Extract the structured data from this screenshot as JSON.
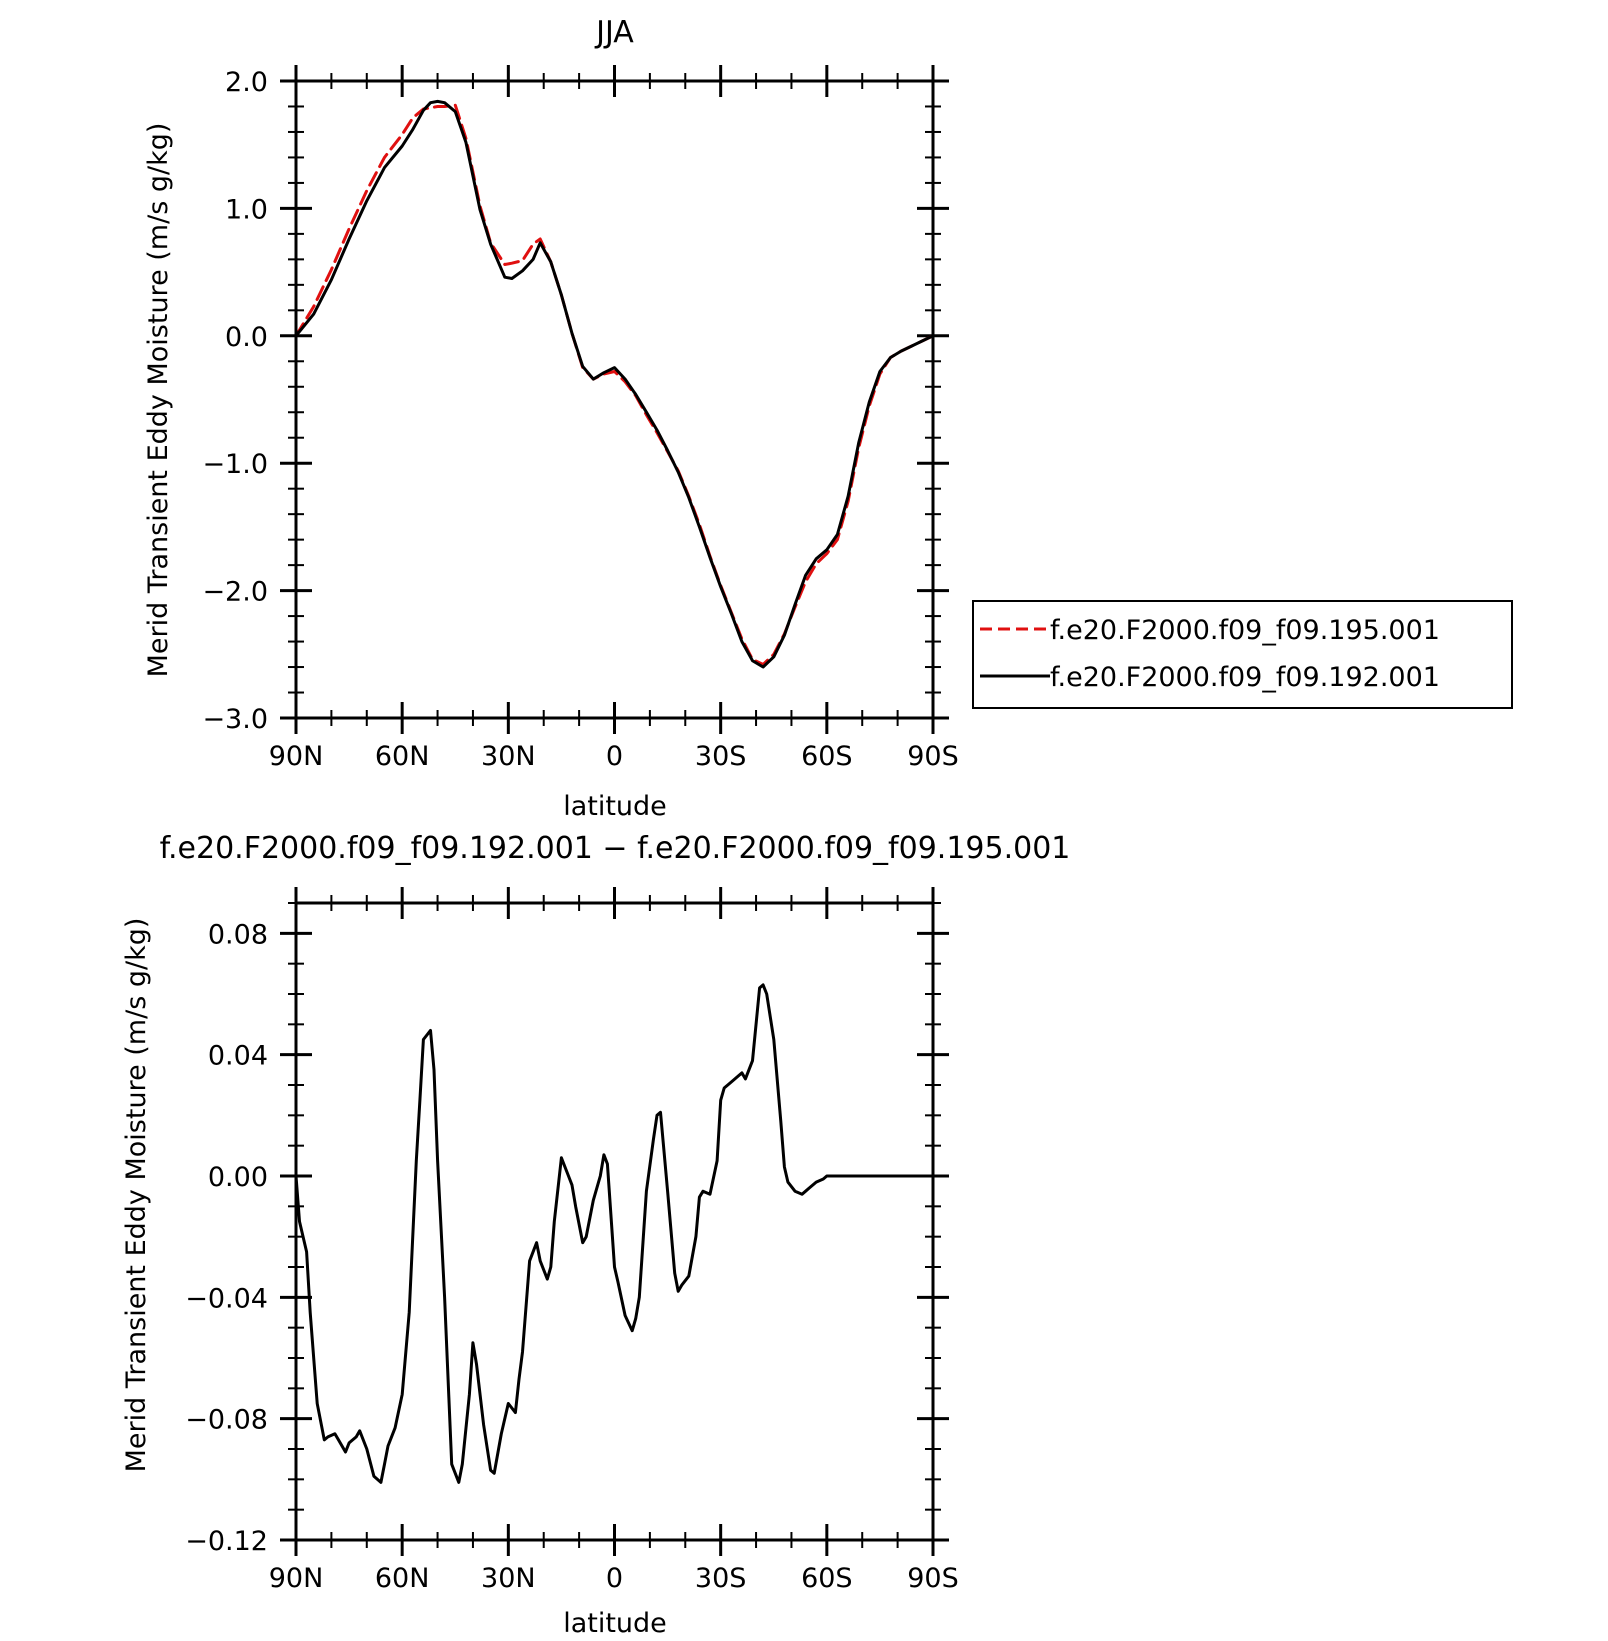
{
  "chart_data": [
    {
      "type": "line",
      "title": "JJA",
      "xlabel": "latitude",
      "ylabel": "Merid Transient Eddy Moisture (m/s g/kg)",
      "xlim": [
        90,
        -90
      ],
      "ylim": [
        -3.0,
        2.0
      ],
      "x_tick_values": [
        90,
        60,
        30,
        0,
        -30,
        -60,
        -90
      ],
      "x_tick_labels": [
        "90N",
        "60N",
        "30N",
        "0",
        "30S",
        "60S",
        "90S"
      ],
      "y_tick_values": [
        2.0,
        1.0,
        0.0,
        -1.0,
        -2.0,
        -3.0
      ],
      "y_tick_labels": [
        "2.0",
        "1.0",
        "0.0",
        "−1.0",
        "−2.0",
        "−3.0"
      ],
      "legend_position": "right",
      "series": [
        {
          "name": "f.e20.F2000.f09_f09.195.001",
          "color": "#e01010",
          "style": "dashed",
          "x": [
            90,
            85,
            80,
            75,
            70,
            65,
            60,
            57,
            54,
            52,
            50,
            48,
            45,
            42,
            38,
            35,
            31,
            29,
            26,
            23,
            21,
            18,
            15,
            12,
            9,
            6,
            3,
            0,
            -3,
            -6,
            -9,
            -12,
            -15,
            -18,
            -21,
            -24,
            -27,
            -30,
            -33,
            -36,
            -39,
            -42,
            -45,
            -48,
            -51,
            -54,
            -57,
            -60,
            -63,
            -66,
            -69,
            -72,
            -75,
            -78,
            -81,
            -84,
            -87,
            -90
          ],
          "y": [
            0.0,
            0.23,
            0.52,
            0.84,
            1.14,
            1.4,
            1.58,
            1.71,
            1.78,
            1.79,
            1.8,
            1.8,
            1.81,
            1.55,
            1.02,
            0.73,
            0.56,
            0.57,
            0.59,
            0.72,
            0.76,
            0.58,
            0.32,
            0.02,
            -0.25,
            -0.34,
            -0.3,
            -0.28,
            -0.36,
            -0.47,
            -0.62,
            -0.76,
            -0.91,
            -1.06,
            -1.26,
            -1.48,
            -1.73,
            -1.96,
            -2.17,
            -2.38,
            -2.54,
            -2.58,
            -2.5,
            -2.34,
            -2.13,
            -1.93,
            -1.79,
            -1.71,
            -1.6,
            -1.3,
            -0.88,
            -0.55,
            -0.3,
            -0.17,
            -0.12,
            -0.08,
            -0.04,
            0.0
          ]
        },
        {
          "name": "f.e20.F2000.f09_f09.192.001",
          "color": "#000000",
          "style": "solid",
          "x": [
            90,
            85,
            80,
            75,
            70,
            65,
            60,
            57,
            54,
            52,
            50,
            48,
            45,
            42,
            38,
            35,
            31,
            29,
            26,
            23,
            21,
            18,
            15,
            12,
            9,
            6,
            3,
            0,
            -3,
            -6,
            -9,
            -12,
            -15,
            -18,
            -21,
            -24,
            -27,
            -30,
            -33,
            -36,
            -39,
            -42,
            -45,
            -48,
            -51,
            -54,
            -57,
            -60,
            -63,
            -66,
            -69,
            -72,
            -75,
            -78,
            -81,
            -84,
            -87,
            -90
          ],
          "y": [
            0.0,
            0.17,
            0.44,
            0.76,
            1.06,
            1.32,
            1.49,
            1.62,
            1.77,
            1.83,
            1.84,
            1.83,
            1.76,
            1.52,
            0.99,
            0.72,
            0.46,
            0.45,
            0.51,
            0.6,
            0.73,
            0.58,
            0.32,
            0.02,
            -0.24,
            -0.34,
            -0.29,
            -0.25,
            -0.34,
            -0.46,
            -0.6,
            -0.74,
            -0.9,
            -1.07,
            -1.27,
            -1.5,
            -1.74,
            -1.97,
            -2.18,
            -2.4,
            -2.55,
            -2.6,
            -2.52,
            -2.35,
            -2.11,
            -1.88,
            -1.75,
            -1.68,
            -1.56,
            -1.26,
            -0.84,
            -0.52,
            -0.28,
            -0.17,
            -0.12,
            -0.08,
            -0.04,
            0.0
          ]
        }
      ]
    },
    {
      "type": "line",
      "title": "f.e20.F2000.f09_f09.192.001 − f.e20.F2000.f09_f09.195.001",
      "xlabel": "latitude",
      "ylabel": "Merid Transient Eddy Moisture (m/s g/kg)",
      "xlim": [
        90,
        -90
      ],
      "ylim": [
        -0.12,
        0.09
      ],
      "x_tick_values": [
        90,
        60,
        30,
        0,
        -30,
        -60,
        -90
      ],
      "x_tick_labels": [
        "90N",
        "60N",
        "30N",
        "0",
        "30S",
        "60S",
        "90S"
      ],
      "y_tick_values": [
        0.08,
        0.04,
        0.0,
        -0.04,
        -0.08,
        -0.12
      ],
      "y_tick_labels": [
        "0.08",
        "0.04",
        "0.00",
        "−0.04",
        "−0.08",
        "−0.12"
      ],
      "series": [
        {
          "color": "#000000",
          "style": "solid",
          "x": [
            90,
            89,
            87,
            86,
            84,
            82,
            81,
            79,
            78,
            76,
            75,
            73,
            72,
            70,
            68,
            66,
            65,
            64,
            62,
            60,
            58,
            56,
            55,
            54,
            52,
            51,
            50,
            48,
            46,
            44,
            43,
            41,
            40,
            39,
            37,
            35,
            34,
            32,
            30,
            28,
            27,
            26,
            24,
            22,
            21,
            19,
            18,
            17,
            15,
            13,
            12,
            11,
            9,
            8,
            6,
            4,
            3,
            2,
            0,
            -1,
            -3,
            -5,
            -6,
            -7,
            -9,
            -11,
            -12,
            -13,
            -15,
            -17,
            -18,
            -19,
            -21,
            -23,
            -24,
            -25,
            -27,
            -29,
            -30,
            -31,
            -33,
            -35,
            -36,
            -37,
            -39,
            -41,
            -42,
            -43,
            -45,
            -47,
            -48,
            -49,
            -51,
            -53,
            -54,
            -55,
            -57,
            -59,
            -60,
            -61,
            -63,
            -65,
            -66,
            -67,
            -69,
            -71,
            -72,
            -73,
            -75,
            -77,
            -78,
            -79,
            -81,
            -83,
            -84,
            -85,
            -87,
            -89,
            -90
          ],
          "y": [
            0.0,
            -0.015,
            -0.025,
            -0.045,
            -0.075,
            -0.087,
            -0.086,
            -0.085,
            -0.087,
            -0.091,
            -0.088,
            -0.086,
            -0.084,
            -0.09,
            -0.099,
            -0.101,
            -0.095,
            -0.089,
            -0.083,
            -0.072,
            -0.045,
            0.005,
            0.025,
            0.045,
            0.048,
            0.035,
            0.005,
            -0.04,
            -0.095,
            -0.101,
            -0.095,
            -0.072,
            -0.055,
            -0.062,
            -0.082,
            -0.097,
            -0.098,
            -0.085,
            -0.075,
            -0.078,
            -0.067,
            -0.058,
            -0.028,
            -0.022,
            -0.028,
            -0.034,
            -0.03,
            -0.015,
            0.006,
            0.0,
            -0.003,
            -0.01,
            -0.022,
            -0.02,
            -0.008,
            0.0,
            0.007,
            0.004,
            -0.03,
            -0.035,
            -0.046,
            -0.051,
            -0.047,
            -0.04,
            -0.005,
            0.012,
            0.02,
            0.021,
            -0.005,
            -0.032,
            -0.038,
            -0.036,
            -0.033,
            -0.02,
            -0.007,
            -0.005,
            -0.006,
            0.005,
            0.025,
            0.029,
            0.031,
            0.033,
            0.034,
            0.032,
            0.038,
            0.062,
            0.063,
            0.06,
            0.045,
            0.018,
            0.003,
            -0.002,
            -0.005,
            -0.006,
            -0.005,
            -0.004,
            -0.002,
            -0.001,
            0.0,
            0.0,
            0.0,
            0.0,
            0.0,
            0.0,
            0.0,
            0.0,
            0.0,
            0.0,
            0.0,
            0.0,
            0.0,
            0.0,
            0.0,
            0.0,
            0.0,
            0.0,
            0.0,
            0.0,
            0.0
          ]
        }
      ]
    }
  ]
}
